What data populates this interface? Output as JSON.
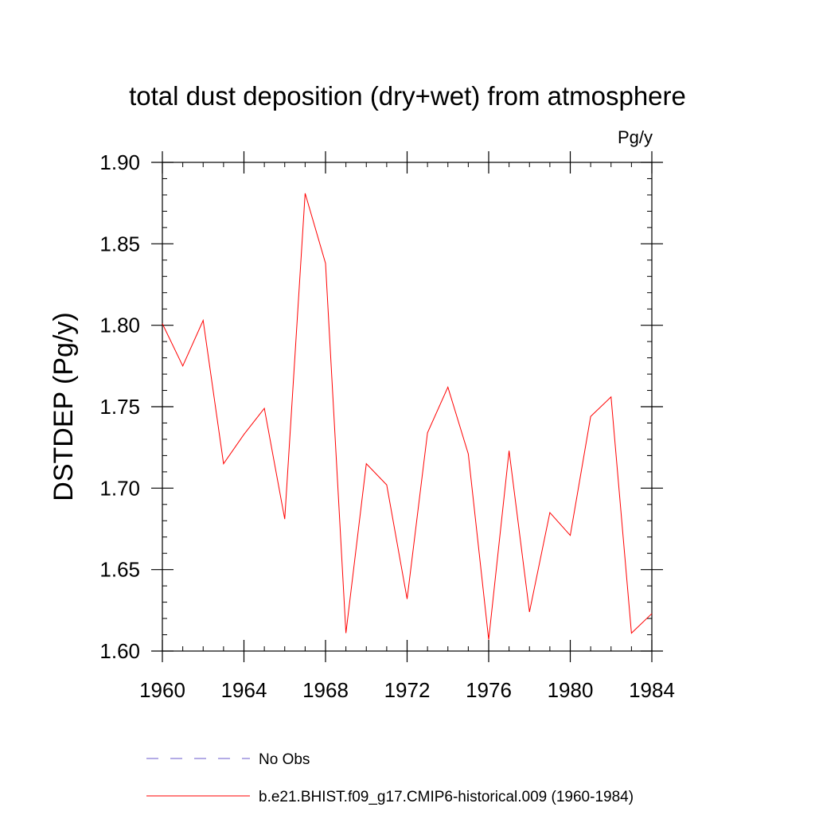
{
  "chart_data": {
    "type": "line",
    "title": "total dust deposition (dry+wet) from atmosphere",
    "units_label": "Pg/y",
    "xlabel": "",
    "ylabel": "DSTDEP  (Pg/y)",
    "xlim": [
      1960,
      1984
    ],
    "ylim": [
      1.6,
      1.9
    ],
    "x_ticks": [
      "1960",
      "1964",
      "1968",
      "1972",
      "1976",
      "1980",
      "1984"
    ],
    "y_ticks": [
      "1.60",
      "1.65",
      "1.70",
      "1.75",
      "1.80",
      "1.85",
      "1.90"
    ],
    "x": [
      1960,
      1961,
      1962,
      1963,
      1964,
      1965,
      1966,
      1967,
      1968,
      1969,
      1970,
      1971,
      1972,
      1973,
      1974,
      1975,
      1976,
      1977,
      1978,
      1979,
      1980,
      1981,
      1982,
      1983,
      1984
    ],
    "series": [
      {
        "name": "b.e21.BHIST.f09_g17.CMIP6-historical.009 (1960-1984)",
        "color": "#ff0000",
        "values": [
          1.801,
          1.775,
          1.803,
          1.715,
          1.733,
          1.749,
          1.681,
          1.881,
          1.838,
          1.611,
          1.715,
          1.702,
          1.632,
          1.734,
          1.762,
          1.721,
          1.607,
          1.723,
          1.624,
          1.685,
          1.671,
          1.744,
          1.756,
          1.611,
          1.623
        ]
      }
    ],
    "legend": [
      {
        "label": "No Obs",
        "color": "#6a5acd",
        "style": "dashed"
      },
      {
        "label": "b.e21.BHIST.f09_g17.CMIP6-historical.009 (1960-1984)",
        "color": "#ff0000",
        "style": "solid"
      }
    ]
  }
}
